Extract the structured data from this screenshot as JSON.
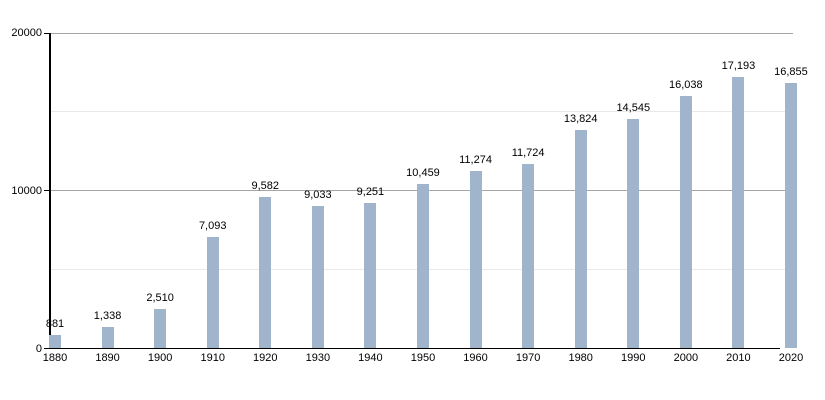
{
  "chart_data": {
    "type": "bar",
    "title": "",
    "xlabel": "",
    "ylabel": "",
    "categories": [
      "1880",
      "1890",
      "1900",
      "1910",
      "1920",
      "1930",
      "1940",
      "1950",
      "1960",
      "1970",
      "1980",
      "1990",
      "2000",
      "2010",
      "2020"
    ],
    "values": [
      881,
      1338,
      2510,
      7093,
      9582,
      9033,
      9251,
      10459,
      11274,
      11724,
      13824,
      14545,
      16038,
      17193,
      16855
    ],
    "value_labels": [
      "881",
      "1,338",
      "2,510",
      "7,093",
      "9,582",
      "9,033",
      "9,251",
      "10,459",
      "11,274",
      "11,724",
      "13,824",
      "14,545",
      "16,038",
      "17,193",
      "16,855"
    ],
    "ylim": [
      0,
      20000
    ],
    "yticks": [
      0,
      10000,
      20000
    ],
    "ytick_labels": [
      "0",
      "10000",
      "20000"
    ],
    "minor_gridlines": [
      5000,
      15000
    ],
    "grid": true,
    "legend": false,
    "colors": {
      "bar_fill": "#a0b5cb",
      "major_grid": "#a5a5a5",
      "minor_grid": "#e9e9e9",
      "axis": "#000000",
      "background": "#ffffff",
      "text": "#000000"
    }
  }
}
